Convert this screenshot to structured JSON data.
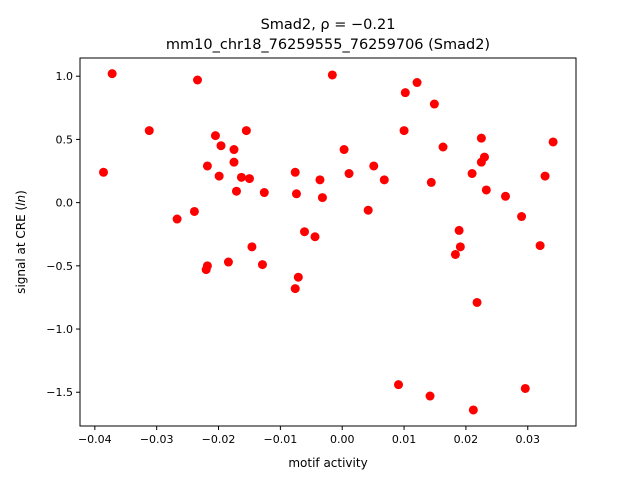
{
  "chart_data": {
    "type": "scatter",
    "title_line1": "Smad2, ρ = −0.21",
    "title_line2": "mm10_chr18_76259555_76259706 (Smad2)",
    "xlabel": "motif activity",
    "ylabel_prefix": "signal at CRE (",
    "ylabel_italic": "ln",
    "ylabel_suffix": ")",
    "xlim": [
      -0.0424,
      0.0378
    ],
    "ylim": [
      -1.767,
      1.144
    ],
    "xticks": [
      -0.04,
      -0.03,
      -0.02,
      -0.01,
      0.0,
      0.01,
      0.02,
      0.03
    ],
    "xtick_labels": [
      "−0.04",
      "−0.03",
      "−0.02",
      "−0.01",
      "0.00",
      "0.01",
      "0.02",
      "0.03"
    ],
    "yticks": [
      1.0,
      0.5,
      0.0,
      -0.5,
      -1.0,
      -1.5
    ],
    "ytick_labels": [
      "1.0",
      "0.5",
      "0.0",
      "−0.5",
      "−1.0",
      "−1.5"
    ],
    "grid": false,
    "marker_color": "#ff0000",
    "points": [
      [
        -0.0386,
        0.24
      ],
      [
        -0.0372,
        1.02
      ],
      [
        -0.0312,
        0.57
      ],
      [
        -0.0267,
        -0.13
      ],
      [
        -0.0239,
        -0.07
      ],
      [
        -0.0234,
        0.97
      ],
      [
        -0.022,
        -0.53
      ],
      [
        -0.0218,
        -0.5
      ],
      [
        -0.0218,
        0.29
      ],
      [
        -0.0205,
        0.53
      ],
      [
        -0.0199,
        0.21
      ],
      [
        -0.0196,
        0.45
      ],
      [
        -0.0184,
        -0.47
      ],
      [
        -0.0175,
        0.42
      ],
      [
        -0.0175,
        0.32
      ],
      [
        -0.0171,
        0.09
      ],
      [
        -0.0163,
        0.2
      ],
      [
        -0.0155,
        0.57
      ],
      [
        -0.015,
        0.19
      ],
      [
        -0.0146,
        -0.35
      ],
      [
        -0.0129,
        -0.49
      ],
      [
        -0.0126,
        0.08
      ],
      [
        -0.0076,
        0.24
      ],
      [
        -0.0076,
        -0.68
      ],
      [
        -0.0074,
        0.07
      ],
      [
        -0.0071,
        -0.59
      ],
      [
        -0.0061,
        -0.23
      ],
      [
        -0.0044,
        -0.27
      ],
      [
        -0.0036,
        0.18
      ],
      [
        -0.0032,
        0.04
      ],
      [
        -0.0016,
        1.01
      ],
      [
        0.0003,
        0.42
      ],
      [
        0.0011,
        0.23
      ],
      [
        0.0042,
        -0.06
      ],
      [
        0.0051,
        0.29
      ],
      [
        0.0068,
        0.18
      ],
      [
        0.0091,
        -1.44
      ],
      [
        0.01,
        0.57
      ],
      [
        0.0102,
        0.87
      ],
      [
        0.0121,
        0.95
      ],
      [
        0.0142,
        -1.53
      ],
      [
        0.0144,
        0.16
      ],
      [
        0.0149,
        0.78
      ],
      [
        0.0163,
        0.44
      ],
      [
        0.0183,
        -0.41
      ],
      [
        0.0189,
        -0.22
      ],
      [
        0.0191,
        -0.35
      ],
      [
        0.021,
        0.23
      ],
      [
        0.0212,
        -1.64
      ],
      [
        0.0218,
        -0.79
      ],
      [
        0.0225,
        0.51
      ],
      [
        0.0225,
        0.32
      ],
      [
        0.023,
        0.36
      ],
      [
        0.0233,
        0.1
      ],
      [
        0.0264,
        0.05
      ],
      [
        0.029,
        -0.11
      ],
      [
        0.0296,
        -1.47
      ],
      [
        0.032,
        -0.34
      ],
      [
        0.0328,
        0.21
      ],
      [
        0.0341,
        0.48
      ]
    ]
  }
}
